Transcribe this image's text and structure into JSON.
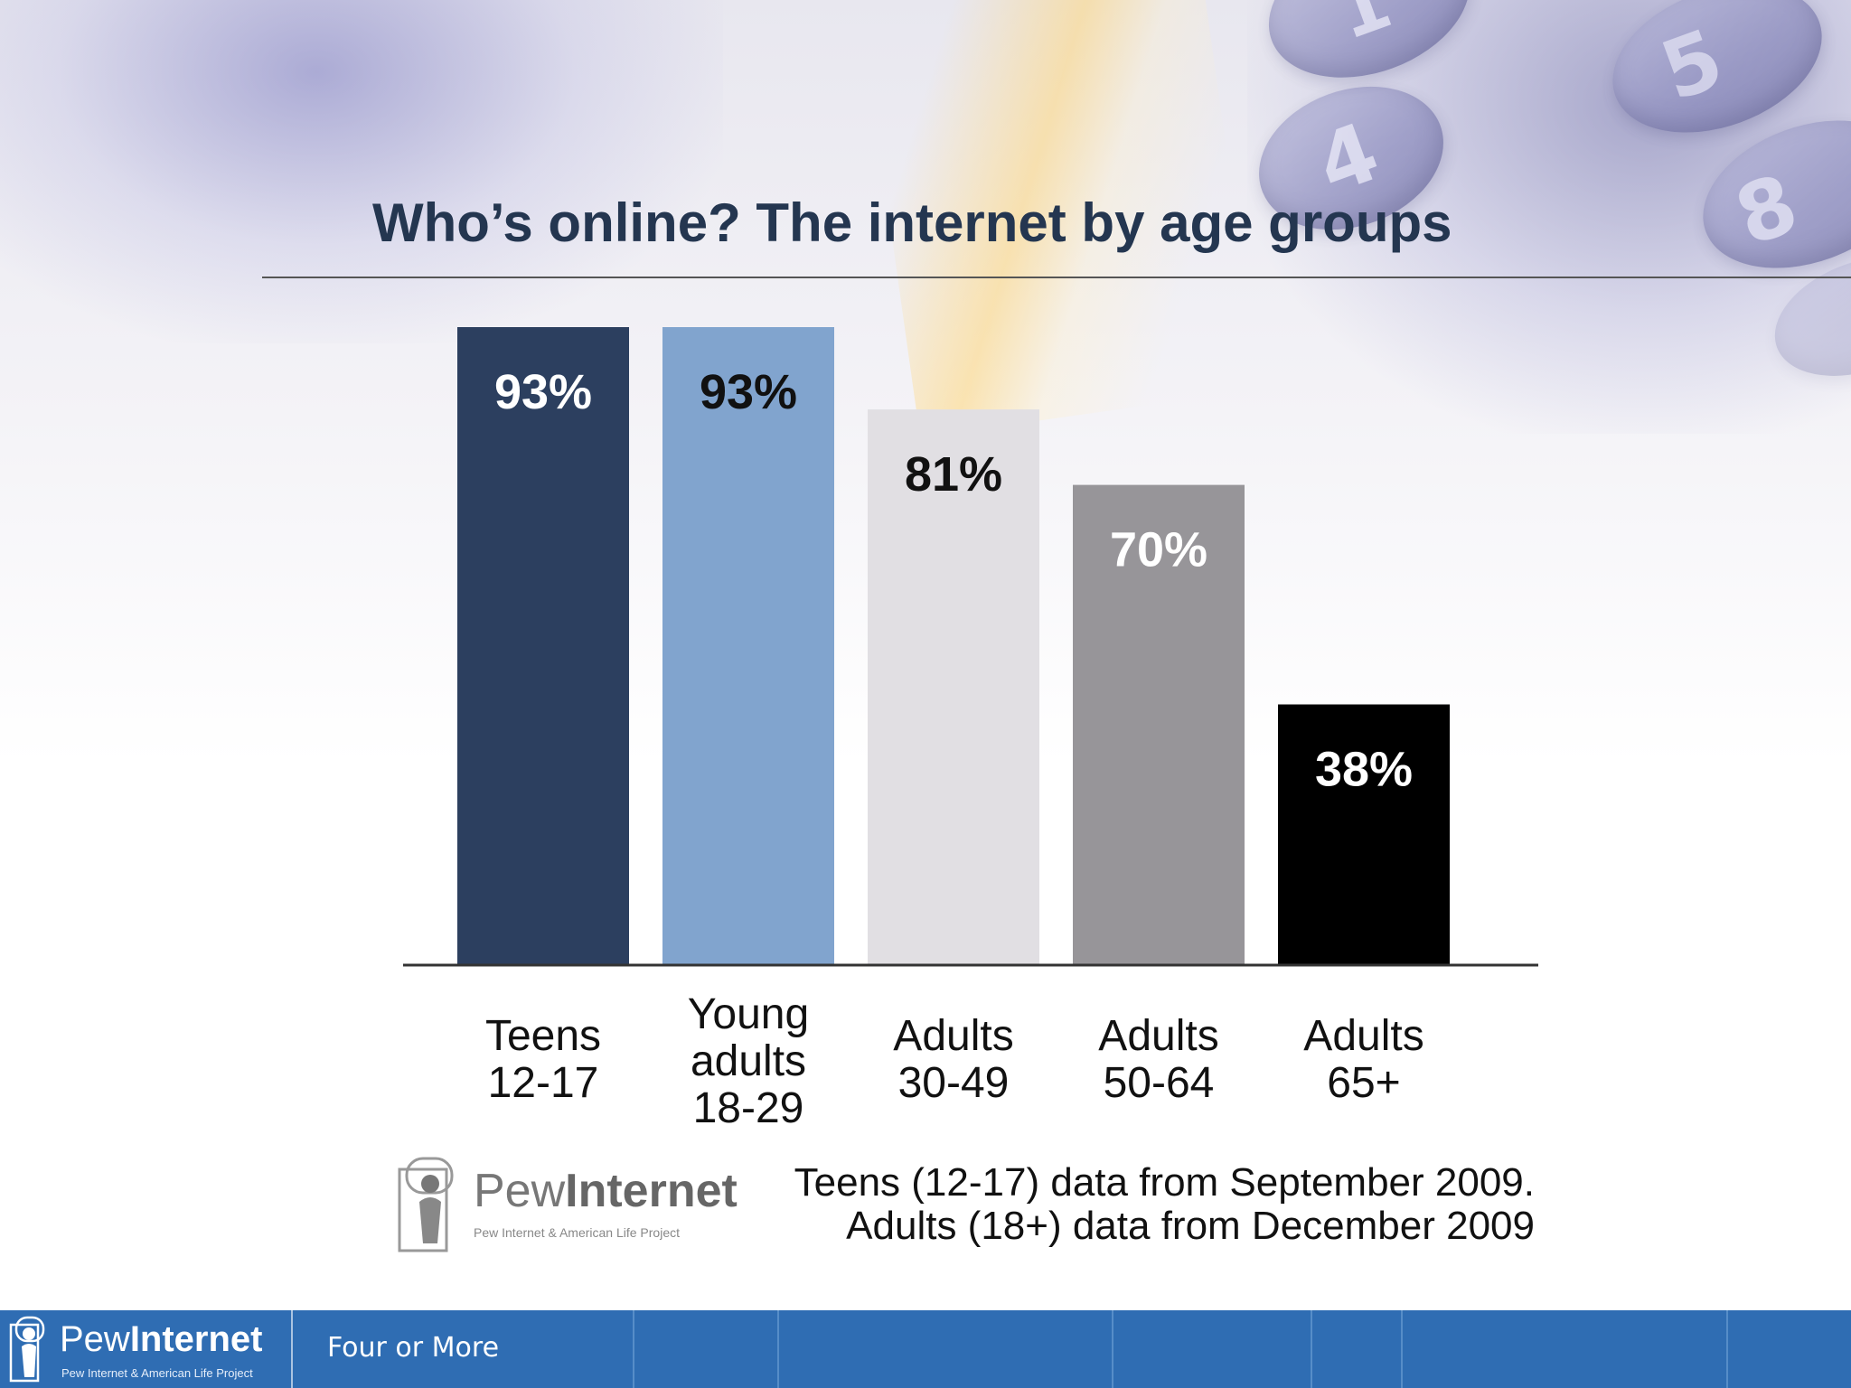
{
  "slide": {
    "title": "Who’s online? The internet by age groups",
    "source_line1": "Teens (12-17) data from September 2009.",
    "source_line2": "Adults (18+) data from December 2009",
    "logo_word_light": "Pew",
    "logo_word_bold": "Internet",
    "logo_subtitle": "Pew Internet & American Life Project",
    "footer_text": "Four or More"
  },
  "chart_data": {
    "type": "bar",
    "title": "Who’s online? The internet by age groups",
    "categories": [
      [
        "Teens",
        "12-17"
      ],
      [
        "Young",
        "adults",
        "18-29"
      ],
      [
        "Adults",
        "30-49"
      ],
      [
        "Adults",
        "50-64"
      ],
      [
        "Adults",
        "65+"
      ]
    ],
    "values": [
      93,
      93,
      81,
      70,
      38
    ],
    "data_labels": [
      "93%",
      "93%",
      "81%",
      "70%",
      "38%"
    ],
    "bar_colors": [
      "#2c3f5f",
      "#81a4ce",
      "#e1dfe3",
      "#979599",
      "#000000"
    ],
    "label_colors": [
      "#ffffff",
      "#111111",
      "#111111",
      "#ffffff",
      "#ffffff"
    ],
    "ylim": [
      0,
      93
    ],
    "xlabel": "",
    "ylabel": "",
    "grid": false,
    "legend": "none"
  }
}
